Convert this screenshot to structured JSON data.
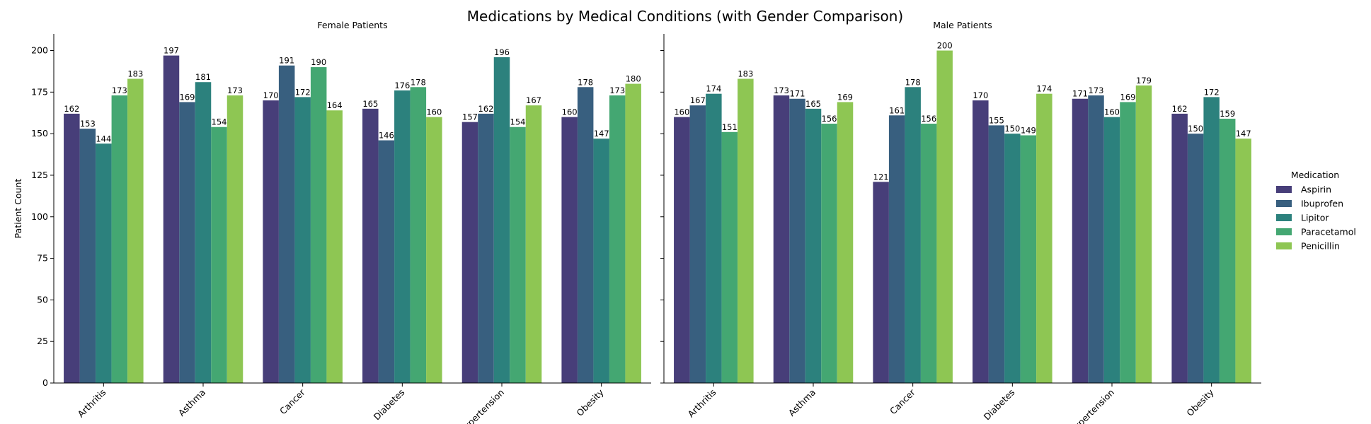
{
  "chart_data": {
    "type": "bar",
    "title": "Medications by Medical Conditions (with Gender Comparison)",
    "ylabel": "Patient Count",
    "ylim": [
      0,
      210
    ],
    "yticks": [
      0,
      25,
      50,
      75,
      100,
      125,
      150,
      175,
      200
    ],
    "categories": [
      "Arthritis",
      "Asthma",
      "Cancer",
      "Diabetes",
      "Hypertension",
      "Obesity"
    ],
    "legend": {
      "title": "Medication",
      "placement": "right"
    },
    "series_colors": {
      "Aspirin": "#473e79",
      "Ibuprofen": "#385f7f",
      "Lipitor": "#2c817d",
      "Paracetamol": "#44a772",
      "Penicillin": "#8ec653"
    },
    "panels": [
      {
        "title": "Female Patients",
        "series": [
          {
            "name": "Aspirin",
            "values": [
              162,
              197,
              170,
              165,
              157,
              160
            ]
          },
          {
            "name": "Ibuprofen",
            "values": [
              153,
              169,
              191,
              146,
              162,
              178
            ]
          },
          {
            "name": "Lipitor",
            "values": [
              144,
              181,
              172,
              176,
              196,
              147
            ]
          },
          {
            "name": "Paracetamol",
            "values": [
              173,
              154,
              190,
              178,
              154,
              173
            ]
          },
          {
            "name": "Penicillin",
            "values": [
              183,
              173,
              164,
              160,
              167,
              180
            ]
          }
        ]
      },
      {
        "title": "Male Patients",
        "series": [
          {
            "name": "Aspirin",
            "values": [
              160,
              173,
              121,
              170,
              171,
              162
            ]
          },
          {
            "name": "Ibuprofen",
            "values": [
              167,
              171,
              161,
              155,
              173,
              150
            ]
          },
          {
            "name": "Lipitor",
            "values": [
              174,
              165,
              178,
              150,
              160,
              172
            ]
          },
          {
            "name": "Paracetamol",
            "values": [
              151,
              156,
              156,
              149,
              169,
              159
            ]
          },
          {
            "name": "Penicillin",
            "values": [
              183,
              169,
              200,
              174,
              179,
              147
            ]
          }
        ]
      }
    ],
    "grid": false
  }
}
